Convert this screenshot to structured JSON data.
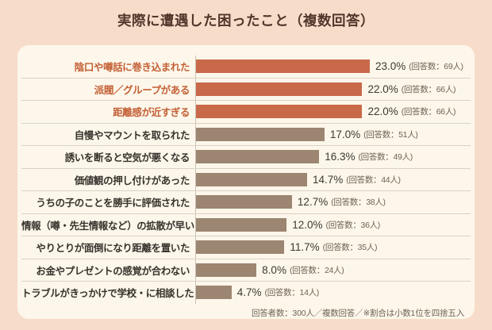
{
  "page_title": "実際に遭遇した困ったこと（複数回答）",
  "colors": {
    "page_background": "#f8dcca",
    "card_background": "#fcf7ea",
    "bar_highlight_orange": "#c8694a",
    "bar_brown": "#9c8571",
    "label_highlight_orange": "#c45f35",
    "label_dark": "#38332d",
    "title_brown": "#50372a",
    "percent_text": "#3e3933",
    "count_text": "#6f6355",
    "separator": "#d9d2c4",
    "axis_line": "#c9c2b4"
  },
  "chart_data": {
    "type": "bar",
    "orientation": "horizontal",
    "title": "実際に遭遇した困ったこと（複数回答）",
    "categories": [
      "陰口や噂話に巻き込まれた",
      "派閥／グループがある",
      "距離感が近すぎる",
      "自慢やマウントを取られた",
      "誘いを断ると空気が悪くなる",
      "価値観の押し付けがあった",
      "うちの子のことを勝手に評価された",
      "情報（噂・先生情報など）の拡散が早い",
      "やりとりが面倒になり距離を置いた",
      "お金やプレゼントの感覚が合わない",
      "トラブルがきっかけで学校・に相談した"
    ],
    "values": [
      23.0,
      22.0,
      22.0,
      17.0,
      16.3,
      14.7,
      12.7,
      12.0,
      11.7,
      8.0,
      4.7
    ],
    "counts": [
      69,
      66,
      66,
      51,
      49,
      44,
      38,
      36,
      35,
      24,
      14
    ],
    "value_suffix": "%",
    "count_prefix": "(回答数：",
    "count_suffix": "人)",
    "highlighted_top": 3,
    "xlim": [
      0,
      23
    ],
    "grid": false,
    "legend": false,
    "note": "回答者数：300人／複数回答／※割合は小数1位を四捨五入"
  }
}
